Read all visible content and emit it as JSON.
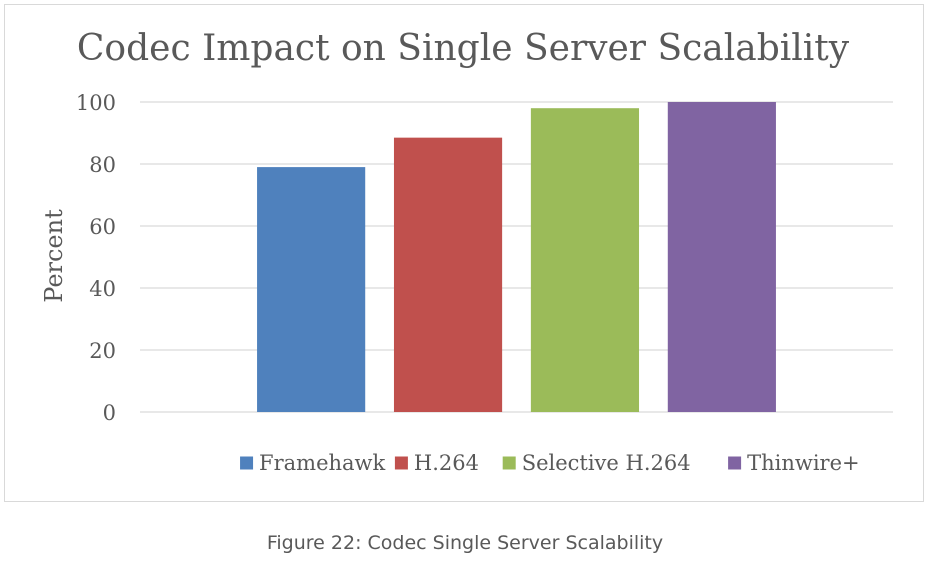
{
  "chart_data": {
    "type": "bar",
    "title": "Codec Impact on Single Server Scalability",
    "xlabel": "",
    "ylabel": "Percent",
    "categories": [
      "Framehawk",
      "H.264",
      "Selective H.264",
      "Thinwire+"
    ],
    "series": [
      {
        "values": [
          79,
          88.5,
          98,
          100
        ]
      }
    ],
    "colors": [
      "#4f81bd",
      "#c0504d",
      "#9bbb59",
      "#8064a2"
    ],
    "ylim": [
      0,
      100
    ],
    "yticks": [
      0,
      20,
      40,
      60,
      80,
      100
    ],
    "grid": true,
    "legend": "bottom"
  },
  "caption": "Figure 22: Codec Single Server Scalability"
}
